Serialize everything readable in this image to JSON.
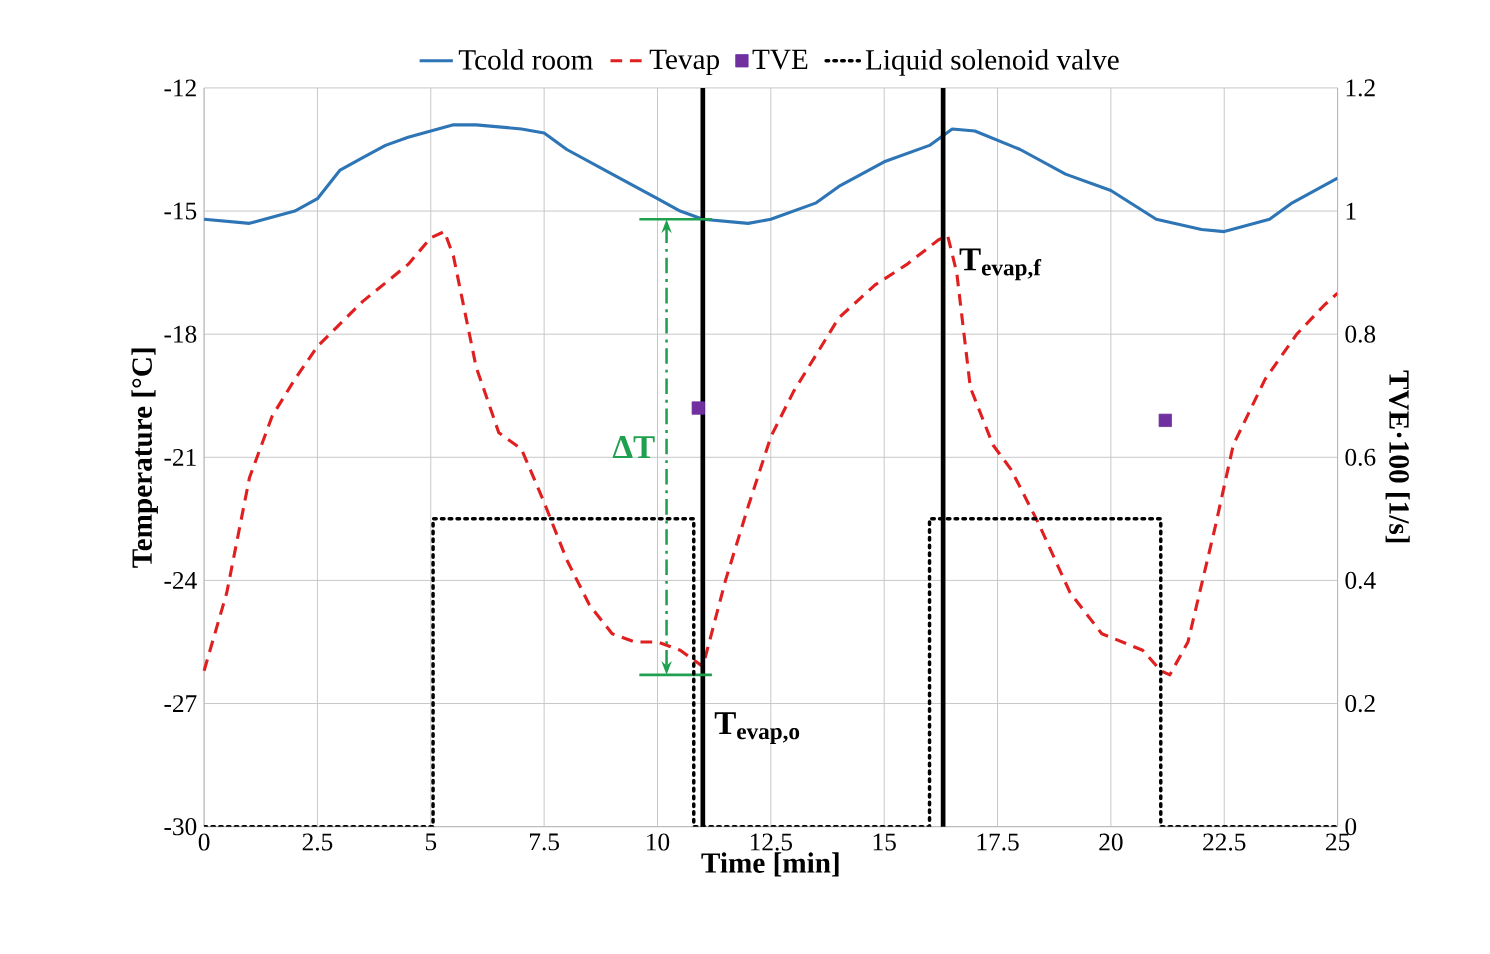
{
  "chart_data": {
    "type": "line",
    "xlabel": "Time [min]",
    "ylabel": "Temperature [°C]",
    "y2label": "TVE·100  [1/s]",
    "xlim": [
      0,
      25
    ],
    "xticks": [
      0,
      2.5,
      5,
      7.5,
      10,
      12.5,
      15,
      17.5,
      20,
      22.5,
      25
    ],
    "ylim": [
      -30,
      -12
    ],
    "yticks": [
      -30,
      -27,
      -24,
      -21,
      -18,
      -15,
      -12
    ],
    "y2lim": [
      0,
      1.2
    ],
    "y2ticks": [
      0,
      0.2,
      0.4,
      0.6,
      0.8,
      1,
      1.2
    ],
    "grid": true,
    "legend": "top",
    "series": [
      {
        "name": "Tcold room",
        "color": "#2e75b6",
        "line_style": "solid",
        "x": [
          0,
          1,
          2,
          2.5,
          3,
          3.5,
          4,
          4.5,
          5,
          5.5,
          6,
          7,
          7.5,
          8,
          9,
          10,
          10.5,
          11,
          12,
          12.5,
          13.5,
          14,
          15,
          16,
          16.5,
          17,
          18,
          19,
          20,
          21,
          22,
          22.5,
          23.5,
          24,
          25
        ],
        "values": [
          -15.2,
          -15.3,
          -15.0,
          -14.7,
          -14.0,
          -13.7,
          -13.4,
          -13.2,
          -13.05,
          -12.9,
          -12.9,
          -13.0,
          -13.1,
          -13.5,
          -14.1,
          -14.7,
          -15.0,
          -15.2,
          -15.3,
          -15.2,
          -14.8,
          -14.4,
          -13.8,
          -13.4,
          -13.0,
          -13.05,
          -13.5,
          -14.1,
          -14.5,
          -15.2,
          -15.45,
          -15.5,
          -15.2,
          -14.8,
          -14.2
        ]
      },
      {
        "name": "Tevap",
        "color": "#e02020",
        "line_style": "dashed",
        "x": [
          0,
          0.5,
          1,
          1.5,
          2,
          2.5,
          3.5,
          4.5,
          5,
          5.3,
          5.5,
          6,
          6.5,
          7,
          7.5,
          8,
          8.5,
          9,
          9.5,
          10,
          10.5,
          11,
          11.5,
          12,
          12.5,
          13,
          14,
          14.8,
          15.5,
          16.2,
          16.4,
          16.6,
          16.9,
          17.4,
          17.8,
          18.4,
          19.1,
          19.8,
          20.7,
          21.1,
          21.3,
          21.7,
          22.3,
          22.7,
          23.4,
          24.1,
          24.7,
          25
        ],
        "values": [
          -26.2,
          -24.3,
          -21.5,
          -20.0,
          -19.1,
          -18.3,
          -17.2,
          -16.3,
          -15.65,
          -15.5,
          -16.1,
          -18.8,
          -20.4,
          -20.8,
          -22.1,
          -23.5,
          -24.6,
          -25.3,
          -25.5,
          -25.5,
          -25.7,
          -26.1,
          -24.0,
          -22.2,
          -20.5,
          -19.4,
          -17.6,
          -16.8,
          -16.3,
          -15.7,
          -15.6,
          -16.5,
          -19.3,
          -20.7,
          -21.3,
          -22.6,
          -24.3,
          -25.3,
          -25.7,
          -26.2,
          -26.3,
          -25.5,
          -22.7,
          -20.7,
          -19.1,
          -18.0,
          -17.3,
          -17.0
        ]
      },
      {
        "name": "TVE",
        "type": "scatter",
        "axis": "y2",
        "color": "#7030a0",
        "marker": "square",
        "x": [
          10.9,
          21.2
        ],
        "values": [
          0.68,
          0.66
        ]
      },
      {
        "name": "Liquid solenoid valve",
        "type": "step",
        "axis": "y2",
        "color": "#000000",
        "line_style": "dotted",
        "x": [
          0,
          5.05,
          10.8,
          16.0,
          21.1,
          25
        ],
        "values": [
          0,
          0.5,
          0,
          0.5,
          0,
          0
        ]
      }
    ],
    "ref_lines": [
      {
        "axis": "x",
        "value": 11.0,
        "color": "#000000"
      },
      {
        "axis": "x",
        "value": 16.3,
        "color": "#000000"
      }
    ],
    "annotations": [
      "ΔT",
      {
        "text": "T$_{evap,o}$",
        "x": 11.2,
        "y": -27.6
      },
      {
        "text": "T$_{evap,f}$",
        "x": 16.6,
        "y": -16.3
      }
    ]
  }
}
